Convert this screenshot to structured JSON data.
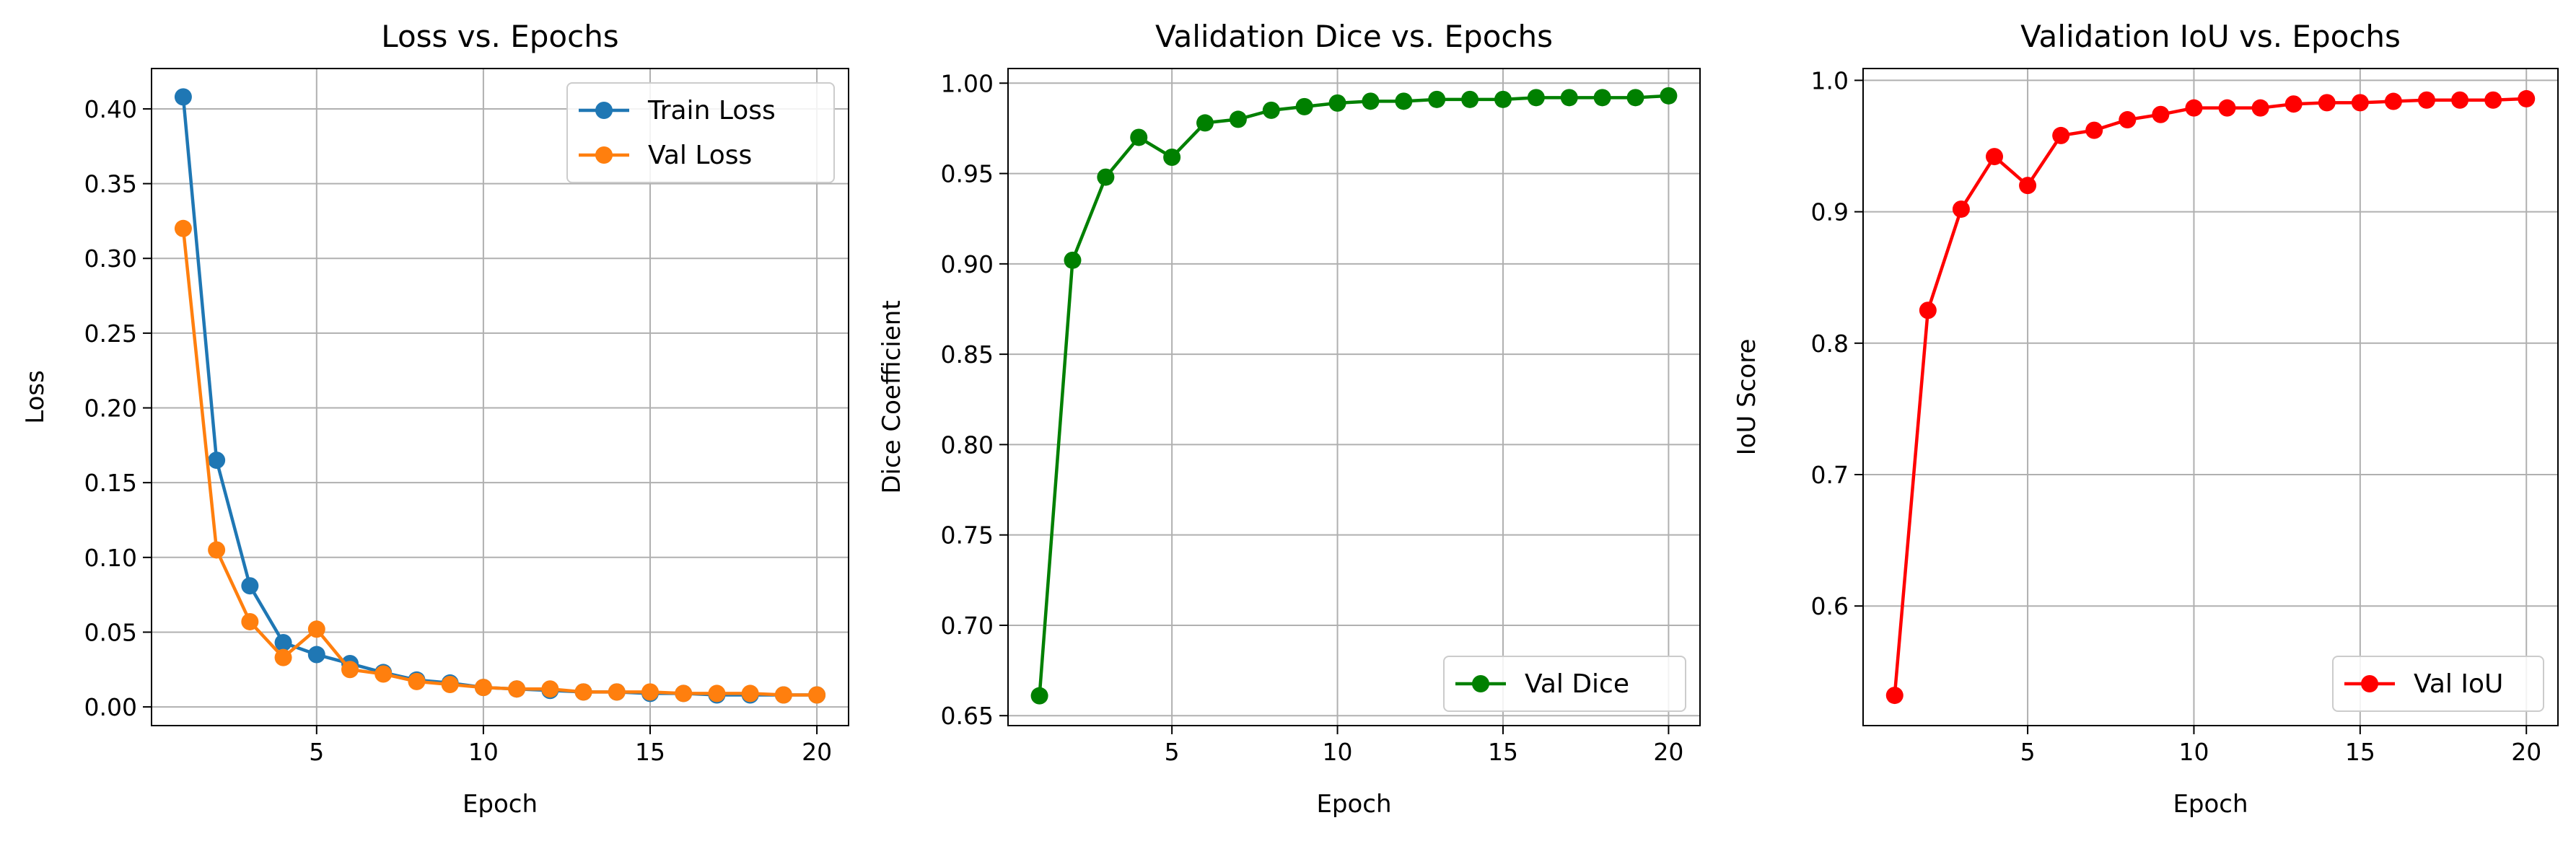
{
  "chart_data": [
    {
      "type": "line",
      "title": "Loss vs. Epochs",
      "xlabel": "Epoch",
      "ylabel": "Loss",
      "xlim": [
        0.05,
        20.95
      ],
      "ylim": [
        -0.0125,
        0.427
      ],
      "xticks": [
        5,
        10,
        15,
        20
      ],
      "xtick_labels": [
        "5",
        "10",
        "15",
        "20"
      ],
      "yticks": [
        0,
        0.05,
        0.1,
        0.15,
        0.2,
        0.25,
        0.3,
        0.35,
        0.4
      ],
      "ytick_labels": [
        "0.00",
        "0.05",
        "0.10",
        "0.15",
        "0.20",
        "0.25",
        "0.30",
        "0.35",
        "0.40"
      ],
      "grid": true,
      "legend": "upper right",
      "x": [
        1,
        2,
        3,
        4,
        5,
        6,
        7,
        8,
        9,
        10,
        11,
        12,
        13,
        14,
        15,
        16,
        17,
        18,
        19,
        20
      ],
      "series": [
        {
          "name": "Train Loss",
          "color": "#1f77b4",
          "marker": "circle",
          "values": [
            0.408,
            0.165,
            0.081,
            0.043,
            0.035,
            0.029,
            0.023,
            0.018,
            0.016,
            0.013,
            0.012,
            0.011,
            0.01,
            0.01,
            0.009,
            0.009,
            0.008,
            0.008,
            0.008,
            0.008
          ]
        },
        {
          "name": "Val Loss",
          "color": "#ff7f0e",
          "marker": "circle",
          "values": [
            0.32,
            0.105,
            0.057,
            0.033,
            0.052,
            0.025,
            0.022,
            0.017,
            0.015,
            0.013,
            0.012,
            0.012,
            0.01,
            0.01,
            0.01,
            0.009,
            0.009,
            0.009,
            0.008,
            0.008
          ]
        }
      ]
    },
    {
      "type": "line",
      "title": "Validation Dice vs. Epochs",
      "xlabel": "Epoch",
      "ylabel": "Dice Coefficient",
      "xlim": [
        0.05,
        20.95
      ],
      "ylim": [
        0.6445,
        1.0081
      ],
      "xticks": [
        5,
        10,
        15,
        20
      ],
      "xtick_labels": [
        "5",
        "10",
        "15",
        "20"
      ],
      "yticks": [
        0.65,
        0.7,
        0.75,
        0.8,
        0.85,
        0.9,
        0.95,
        1.0
      ],
      "ytick_labels": [
        "0.65",
        "0.70",
        "0.75",
        "0.80",
        "0.85",
        "0.90",
        "0.95",
        "1.00"
      ],
      "grid": true,
      "legend": "lower right",
      "x": [
        1,
        2,
        3,
        4,
        5,
        6,
        7,
        8,
        9,
        10,
        11,
        12,
        13,
        14,
        15,
        16,
        17,
        18,
        19,
        20
      ],
      "series": [
        {
          "name": "Val Dice",
          "color": "#008000",
          "marker": "circle",
          "values": [
            0.661,
            0.902,
            0.948,
            0.97,
            0.959,
            0.978,
            0.98,
            0.985,
            0.987,
            0.989,
            0.99,
            0.99,
            0.991,
            0.991,
            0.991,
            0.992,
            0.992,
            0.992,
            0.992,
            0.993
          ]
        }
      ]
    },
    {
      "type": "line",
      "title": "Validation IoU vs. Epochs",
      "xlabel": "Epoch",
      "ylabel": "IoU Score",
      "xlim": [
        0.05,
        20.95
      ],
      "ylim": [
        0.509,
        1.009
      ],
      "xticks": [
        5,
        10,
        15,
        20
      ],
      "xtick_labels": [
        "5",
        "10",
        "15",
        "20"
      ],
      "yticks": [
        0.6,
        0.7,
        0.8,
        0.9,
        1.0
      ],
      "ytick_labels": [
        "0.6",
        "0.7",
        "0.8",
        "0.9",
        "1.0"
      ],
      "grid": true,
      "legend": "lower right",
      "x": [
        1,
        2,
        3,
        4,
        5,
        6,
        7,
        8,
        9,
        10,
        11,
        12,
        13,
        14,
        15,
        16,
        17,
        18,
        19,
        20
      ],
      "series": [
        {
          "name": "Val IoU",
          "color": "#ff0000",
          "marker": "circle",
          "values": [
            0.532,
            0.825,
            0.902,
            0.942,
            0.92,
            0.958,
            0.962,
            0.97,
            0.974,
            0.979,
            0.979,
            0.979,
            0.982,
            0.983,
            0.983,
            0.984,
            0.985,
            0.985,
            0.985,
            0.986
          ]
        }
      ]
    }
  ]
}
